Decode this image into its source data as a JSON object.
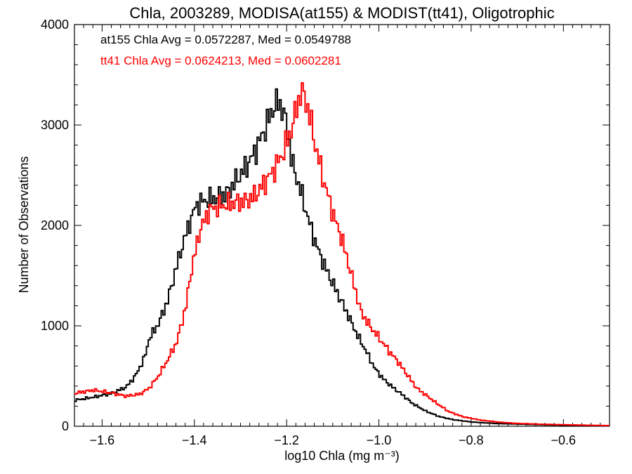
{
  "chart_data": {
    "type": "line",
    "title": "Chla, 2003289, MODISA(at155) & MODIST(tt41), Oligotrophic",
    "xlabel": "log10 Chla (mg m⁻³)",
    "ylabel": "Number of Observations",
    "xlim": [
      -1.66,
      -0.5
    ],
    "ylim": [
      0,
      4000
    ],
    "xticks": [
      -1.6,
      -1.4,
      -1.2,
      -1.0,
      -0.8,
      -0.6
    ],
    "xtick_labels": [
      "−1.6",
      "−1.4",
      "−1.2",
      "−1.0",
      "−0.8",
      "−0.6"
    ],
    "yticks": [
      0,
      1000,
      2000,
      3000,
      4000
    ],
    "ytick_labels": [
      "0",
      "1000",
      "2000",
      "3000",
      "4000"
    ],
    "grid": false,
    "annotations": [
      {
        "text": "at155 Chla Avg = 0.0572287, Med = 0.0549788",
        "color": "#000000"
      },
      {
        "text": "tt41 Chla Avg = 0.0624213, Med = 0.0602281",
        "color": "#ff0000"
      }
    ],
    "series": [
      {
        "color": "#000000",
        "x": [
          -1.66,
          -1.62,
          -1.58,
          -1.55,
          -1.53,
          -1.51,
          -1.5,
          -1.48,
          -1.46,
          -1.44,
          -1.42,
          -1.4,
          -1.39,
          -1.37,
          -1.35,
          -1.33,
          -1.31,
          -1.29,
          -1.27,
          -1.25,
          -1.23,
          -1.22,
          -1.21,
          -1.2,
          -1.19,
          -1.17,
          -1.15,
          -1.13,
          -1.11,
          -1.09,
          -1.07,
          -1.05,
          -1.03,
          -1.01,
          -0.99,
          -0.97,
          -0.95,
          -0.93,
          -0.9,
          -0.87,
          -0.84,
          -0.8,
          -0.75,
          -0.7,
          -0.65,
          -0.6,
          -0.55,
          -0.5
        ],
        "y": [
          260,
          290,
          330,
          390,
          500,
          680,
          870,
          1020,
          1250,
          1600,
          1920,
          2180,
          2230,
          2260,
          2280,
          2320,
          2460,
          2580,
          2740,
          2950,
          3180,
          3230,
          3150,
          2950,
          2620,
          2320,
          1980,
          1710,
          1500,
          1310,
          1120,
          920,
          750,
          570,
          460,
          380,
          310,
          230,
          150,
          95,
          65,
          42,
          28,
          22,
          15,
          10,
          8,
          5
        ]
      },
      {
        "color": "#ff0000",
        "x": [
          -1.66,
          -1.62,
          -1.58,
          -1.55,
          -1.52,
          -1.5,
          -1.48,
          -1.46,
          -1.44,
          -1.42,
          -1.41,
          -1.39,
          -1.37,
          -1.35,
          -1.33,
          -1.31,
          -1.29,
          -1.27,
          -1.25,
          -1.23,
          -1.21,
          -1.19,
          -1.18,
          -1.17,
          -1.16,
          -1.15,
          -1.14,
          -1.12,
          -1.1,
          -1.08,
          -1.06,
          -1.04,
          -1.02,
          -1.0,
          -0.98,
          -0.96,
          -0.94,
          -0.92,
          -0.9,
          -0.88,
          -0.85,
          -0.82,
          -0.78,
          -0.74,
          -0.7,
          -0.65,
          -0.6,
          -0.55,
          -0.5
        ],
        "y": [
          330,
          360,
          330,
          300,
          320,
          380,
          500,
          660,
          840,
          1200,
          1520,
          1950,
          2150,
          2190,
          2210,
          2230,
          2240,
          2300,
          2420,
          2550,
          2720,
          2980,
          3180,
          3340,
          3240,
          3050,
          2800,
          2420,
          2100,
          1830,
          1480,
          1130,
          990,
          870,
          750,
          640,
          510,
          380,
          310,
          240,
          145,
          95,
          60,
          40,
          28,
          20,
          15,
          10,
          6
        ]
      }
    ]
  }
}
